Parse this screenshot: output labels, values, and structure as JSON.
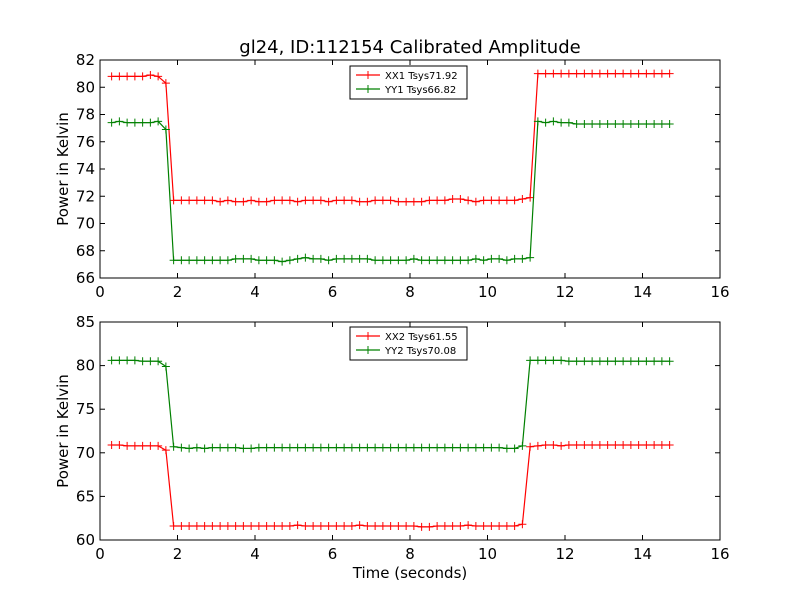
{
  "figure": {
    "title": "gl24, ID:112154 Calibrated Amplitude"
  },
  "chart_data": [
    {
      "type": "line",
      "title": "gl24, ID:112154 Calibrated Amplitude",
      "xlabel": "",
      "ylabel": "Power in Kelvin",
      "xlim": [
        0,
        16
      ],
      "ylim": [
        66,
        82
      ],
      "xticks": [
        0,
        2,
        4,
        6,
        8,
        10,
        12,
        14,
        16
      ],
      "yticks": [
        66,
        68,
        70,
        72,
        74,
        76,
        78,
        80,
        82
      ],
      "legend_position": "top-center",
      "grid": false,
      "x": [
        0.3,
        0.5,
        0.7,
        0.9,
        1.1,
        1.3,
        1.5,
        1.7,
        1.9,
        2.1,
        2.3,
        2.5,
        2.7,
        2.9,
        3.1,
        3.3,
        3.5,
        3.7,
        3.9,
        4.1,
        4.3,
        4.5,
        4.7,
        4.9,
        5.1,
        5.3,
        5.5,
        5.7,
        5.9,
        6.1,
        6.3,
        6.5,
        6.7,
        6.9,
        7.1,
        7.3,
        7.5,
        7.7,
        7.9,
        8.1,
        8.3,
        8.5,
        8.7,
        8.9,
        9.1,
        9.3,
        9.5,
        9.7,
        9.9,
        10.1,
        10.3,
        10.5,
        10.7,
        10.9,
        11.1,
        11.3,
        11.5,
        11.7,
        11.9,
        12.1,
        12.3,
        12.5,
        12.7,
        12.9,
        13.1,
        13.3,
        13.5,
        13.7,
        13.9,
        14.1,
        14.3,
        14.5,
        14.7
      ],
      "series": [
        {
          "name": "XX1 Tsys71.92",
          "color": "#ff0000",
          "values": [
            80.8,
            80.8,
            80.8,
            80.8,
            80.8,
            80.9,
            80.8,
            80.3,
            71.7,
            71.7,
            71.7,
            71.7,
            71.7,
            71.7,
            71.6,
            71.7,
            71.6,
            71.6,
            71.7,
            71.6,
            71.6,
            71.7,
            71.7,
            71.7,
            71.6,
            71.7,
            71.7,
            71.7,
            71.6,
            71.7,
            71.7,
            71.7,
            71.6,
            71.6,
            71.7,
            71.7,
            71.7,
            71.6,
            71.6,
            71.6,
            71.6,
            71.7,
            71.7,
            71.7,
            71.8,
            71.8,
            71.7,
            71.6,
            71.7,
            71.7,
            71.7,
            71.7,
            71.7,
            71.8,
            71.9,
            81.0,
            81.0,
            81.0,
            81.0,
            81.0,
            81.0,
            81.0,
            81.0,
            81.0,
            81.0,
            81.0,
            81.0,
            81.0,
            81.0,
            81.0,
            81.0,
            81.0,
            81.0
          ]
        },
        {
          "name": "YY1 Tsys66.82",
          "color": "#008000",
          "values": [
            77.4,
            77.5,
            77.4,
            77.4,
            77.4,
            77.4,
            77.5,
            76.9,
            67.3,
            67.3,
            67.3,
            67.3,
            67.3,
            67.3,
            67.3,
            67.3,
            67.4,
            67.4,
            67.4,
            67.3,
            67.3,
            67.3,
            67.2,
            67.3,
            67.4,
            67.5,
            67.4,
            67.4,
            67.3,
            67.4,
            67.4,
            67.4,
            67.4,
            67.4,
            67.3,
            67.3,
            67.3,
            67.3,
            67.3,
            67.4,
            67.3,
            67.3,
            67.3,
            67.3,
            67.3,
            67.3,
            67.3,
            67.4,
            67.3,
            67.4,
            67.4,
            67.3,
            67.4,
            67.4,
            67.5,
            77.5,
            77.4,
            77.5,
            77.4,
            77.4,
            77.3,
            77.3,
            77.3,
            77.3,
            77.3,
            77.3,
            77.3,
            77.3,
            77.3,
            77.3,
            77.3,
            77.3,
            77.3
          ]
        }
      ]
    },
    {
      "type": "line",
      "title": "",
      "xlabel": "Time (seconds)",
      "ylabel": "Power in Kelvin",
      "xlim": [
        0,
        16
      ],
      "ylim": [
        60,
        85
      ],
      "xticks": [
        0,
        2,
        4,
        6,
        8,
        10,
        12,
        14,
        16
      ],
      "yticks": [
        60,
        65,
        70,
        75,
        80,
        85
      ],
      "legend_position": "top-center",
      "grid": false,
      "x": [
        0.3,
        0.5,
        0.7,
        0.9,
        1.1,
        1.3,
        1.5,
        1.7,
        1.9,
        2.1,
        2.3,
        2.5,
        2.7,
        2.9,
        3.1,
        3.3,
        3.5,
        3.7,
        3.9,
        4.1,
        4.3,
        4.5,
        4.7,
        4.9,
        5.1,
        5.3,
        5.5,
        5.7,
        5.9,
        6.1,
        6.3,
        6.5,
        6.7,
        6.9,
        7.1,
        7.3,
        7.5,
        7.7,
        7.9,
        8.1,
        8.3,
        8.5,
        8.7,
        8.9,
        9.1,
        9.3,
        9.5,
        9.7,
        9.9,
        10.1,
        10.3,
        10.5,
        10.7,
        10.9,
        11.1,
        11.3,
        11.5,
        11.7,
        11.9,
        12.1,
        12.3,
        12.5,
        12.7,
        12.9,
        13.1,
        13.3,
        13.5,
        13.7,
        13.9,
        14.1,
        14.3,
        14.5,
        14.7
      ],
      "series": [
        {
          "name": "XX2 Tsys61.55",
          "color": "#ff0000",
          "values": [
            70.9,
            70.9,
            70.8,
            70.8,
            70.8,
            70.8,
            70.8,
            70.3,
            61.6,
            61.6,
            61.6,
            61.6,
            61.6,
            61.6,
            61.6,
            61.6,
            61.6,
            61.6,
            61.6,
            61.6,
            61.6,
            61.6,
            61.6,
            61.6,
            61.7,
            61.6,
            61.6,
            61.6,
            61.6,
            61.6,
            61.6,
            61.6,
            61.7,
            61.6,
            61.6,
            61.6,
            61.6,
            61.6,
            61.6,
            61.6,
            61.5,
            61.5,
            61.6,
            61.6,
            61.6,
            61.6,
            61.7,
            61.6,
            61.6,
            61.6,
            61.6,
            61.6,
            61.6,
            61.8,
            70.7,
            70.8,
            70.9,
            70.9,
            70.8,
            70.9,
            70.9,
            70.9,
            70.9,
            70.9,
            70.9,
            70.9,
            70.9,
            70.9,
            70.9,
            70.9,
            70.9,
            70.9,
            70.9
          ]
        },
        {
          "name": "YY2 Tsys70.08",
          "color": "#008000",
          "values": [
            80.6,
            80.6,
            80.6,
            80.6,
            80.5,
            80.5,
            80.5,
            79.9,
            70.7,
            70.6,
            70.5,
            70.6,
            70.5,
            70.6,
            70.6,
            70.6,
            70.6,
            70.5,
            70.5,
            70.6,
            70.6,
            70.6,
            70.6,
            70.6,
            70.6,
            70.6,
            70.6,
            70.6,
            70.6,
            70.6,
            70.6,
            70.6,
            70.6,
            70.6,
            70.6,
            70.6,
            70.6,
            70.6,
            70.6,
            70.6,
            70.6,
            70.6,
            70.6,
            70.6,
            70.6,
            70.6,
            70.6,
            70.6,
            70.6,
            70.6,
            70.6,
            70.5,
            70.5,
            70.8,
            80.6,
            80.6,
            80.6,
            80.6,
            80.6,
            80.5,
            80.5,
            80.5,
            80.5,
            80.5,
            80.5,
            80.5,
            80.5,
            80.5,
            80.5,
            80.5,
            80.5,
            80.5,
            80.5
          ]
        }
      ]
    }
  ]
}
